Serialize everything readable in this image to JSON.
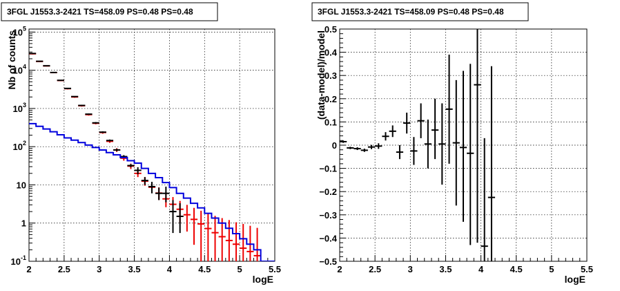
{
  "chart_data": [
    {
      "type": "scatter",
      "title": "3FGL J1553.3-2421 TS=458.09 PS=0.48 PS=0.48",
      "xlabel": "logE",
      "ylabel": "Nb of counts",
      "yscale": "log",
      "xlim": [
        2,
        5.5
      ],
      "ylim": [
        0.1,
        120000
      ],
      "grid": true,
      "x_ticks": [
        {
          "value": 2,
          "label": "2"
        },
        {
          "value": 2.5,
          "label": "2.5"
        },
        {
          "value": 3,
          "label": "3"
        },
        {
          "value": 3.5,
          "label": "3.5"
        },
        {
          "value": 4,
          "label": "4"
        },
        {
          "value": 4.5,
          "label": "4.5"
        },
        {
          "value": 5,
          "label": "5"
        },
        {
          "value": 5.5,
          "label": "5.5"
        }
      ],
      "y_ticks": [
        {
          "value": 0.1,
          "base": "10",
          "exp": "-1"
        },
        {
          "value": 1,
          "base": "1",
          "exp": ""
        },
        {
          "value": 10,
          "base": "10",
          "exp": ""
        },
        {
          "value": 100,
          "base": "10",
          "exp": "2"
        },
        {
          "value": 1000,
          "base": "10",
          "exp": "3"
        },
        {
          "value": 10000,
          "base": "10",
          "exp": "4"
        },
        {
          "value": 100000,
          "base": "10",
          "exp": "5"
        }
      ],
      "bin_edges": [
        2.0,
        2.1,
        2.2,
        2.3,
        2.4,
        2.5,
        2.6,
        2.7,
        2.8,
        2.9,
        3.0,
        3.1,
        3.2,
        3.3,
        3.4,
        3.5,
        3.6,
        3.7,
        3.8,
        3.9,
        4.0,
        4.1,
        4.2,
        4.3,
        4.4,
        4.5,
        4.6,
        4.7,
        4.8,
        4.9,
        5.0,
        5.1,
        5.2,
        5.3,
        5.4,
        5.5
      ],
      "series": [
        {
          "color": "#ee0000",
          "style": "errorbar",
          "points": [
            {
              "x": 2.05,
              "y": 27000,
              "ylo": 26000,
              "yhi": 28000
            },
            {
              "x": 2.15,
              "y": 17000,
              "ylo": 16500,
              "yhi": 17500
            },
            {
              "x": 2.25,
              "y": 13000,
              "ylo": 12600,
              "yhi": 13400
            },
            {
              "x": 2.35,
              "y": 8700,
              "ylo": 8400,
              "yhi": 9000
            },
            {
              "x": 2.45,
              "y": 5400,
              "ylo": 5200,
              "yhi": 5600
            },
            {
              "x": 2.55,
              "y": 3300,
              "ylo": 3150,
              "yhi": 3450
            },
            {
              "x": 2.65,
              "y": 2000,
              "ylo": 1900,
              "yhi": 2100
            },
            {
              "x": 2.75,
              "y": 1180,
              "ylo": 1120,
              "yhi": 1240
            },
            {
              "x": 2.85,
              "y": 690,
              "ylo": 650,
              "yhi": 730
            },
            {
              "x": 2.95,
              "y": 410,
              "ylo": 385,
              "yhi": 435
            },
            {
              "x": 3.05,
              "y": 235,
              "ylo": 218,
              "yhi": 252
            },
            {
              "x": 3.15,
              "y": 138,
              "ylo": 126,
              "yhi": 150
            },
            {
              "x": 3.25,
              "y": 82,
              "ylo": 73,
              "yhi": 91
            },
            {
              "x": 3.35,
              "y": 50,
              "ylo": 43,
              "yhi": 57
            },
            {
              "x": 3.45,
              "y": 31,
              "ylo": 26,
              "yhi": 36
            },
            {
              "x": 3.55,
              "y": 20,
              "ylo": 16,
              "yhi": 24
            },
            {
              "x": 3.65,
              "y": 12.5,
              "ylo": 9.5,
              "yhi": 16
            },
            {
              "x": 3.75,
              "y": 8.7,
              "ylo": 6.2,
              "yhi": 11.5
            },
            {
              "x": 3.85,
              "y": 6.1,
              "ylo": 4.0,
              "yhi": 8.6
            },
            {
              "x": 3.95,
              "y": 4.3,
              "ylo": 2.6,
              "yhi": 6.4
            },
            {
              "x": 4.05,
              "y": 3.1,
              "ylo": 1.6,
              "yhi": 4.8
            },
            {
              "x": 4.15,
              "y": 2.3,
              "ylo": 1.0,
              "yhi": 3.8
            },
            {
              "x": 4.25,
              "y": 1.65,
              "ylo": 0.6,
              "yhi": 3.0
            },
            {
              "x": 4.35,
              "y": 1.25,
              "ylo": 0.27,
              "yhi": 2.5
            },
            {
              "x": 4.45,
              "y": 0.95,
              "ylo": 0.1,
              "yhi": 2.1
            },
            {
              "x": 4.55,
              "y": 0.72,
              "ylo": 0.1,
              "yhi": 1.8
            },
            {
              "x": 4.65,
              "y": 0.56,
              "ylo": 0.1,
              "yhi": 1.55
            },
            {
              "x": 4.75,
              "y": 0.44,
              "ylo": 0.1,
              "yhi": 1.35
            },
            {
              "x": 4.85,
              "y": 0.35,
              "ylo": 0.1,
              "yhi": 1.2
            },
            {
              "x": 4.95,
              "y": 0.28,
              "ylo": 0.1,
              "yhi": 1.05
            },
            {
              "x": 5.05,
              "y": 0.22,
              "ylo": 0.1,
              "yhi": 0.95
            },
            {
              "x": 5.15,
              "y": 0.18,
              "ylo": 0.1,
              "yhi": 0.85
            },
            {
              "x": 5.25,
              "y": 0.14,
              "ylo": 0.1,
              "yhi": 0.75
            }
          ]
        },
        {
          "color": "#000000",
          "style": "errorbar",
          "points": [
            {
              "x": 2.05,
              "y": 27500,
              "ylo": 27300,
              "yhi": 27700
            },
            {
              "x": 2.15,
              "y": 17200,
              "ylo": 17000,
              "yhi": 17400
            },
            {
              "x": 2.25,
              "y": 13100,
              "ylo": 12900,
              "yhi": 13300
            },
            {
              "x": 2.35,
              "y": 8750,
              "ylo": 8600,
              "yhi": 8900
            },
            {
              "x": 2.45,
              "y": 5450,
              "ylo": 5350,
              "yhi": 5550
            },
            {
              "x": 2.55,
              "y": 3350,
              "ylo": 3280,
              "yhi": 3420
            },
            {
              "x": 2.65,
              "y": 2050,
              "ylo": 2000,
              "yhi": 2100
            },
            {
              "x": 2.75,
              "y": 1200,
              "ylo": 1160,
              "yhi": 1240
            },
            {
              "x": 2.85,
              "y": 710,
              "ylo": 685,
              "yhi": 735
            },
            {
              "x": 2.95,
              "y": 420,
              "ylo": 400,
              "yhi": 440
            },
            {
              "x": 3.05,
              "y": 240,
              "ylo": 228,
              "yhi": 252
            },
            {
              "x": 3.15,
              "y": 145,
              "ylo": 136,
              "yhi": 154
            },
            {
              "x": 3.25,
              "y": 82,
              "ylo": 76,
              "yhi": 88
            },
            {
              "x": 3.35,
              "y": 55,
              "ylo": 50,
              "yhi": 60
            },
            {
              "x": 3.45,
              "y": 32,
              "ylo": 29,
              "yhi": 35
            },
            {
              "x": 3.55,
              "y": 24,
              "ylo": 19,
              "yhi": 29
            },
            {
              "x": 3.65,
              "y": 13,
              "ylo": 10,
              "yhi": 16
            },
            {
              "x": 3.75,
              "y": 9,
              "ylo": 6,
              "yhi": 12
            },
            {
              "x": 3.85,
              "y": 6,
              "ylo": 4,
              "yhi": 8.5
            },
            {
              "x": 3.95,
              "y": 6,
              "ylo": 3.5,
              "yhi": 9
            },
            {
              "x": 4.05,
              "y": 2,
              "ylo": 0.55,
              "yhi": 4
            },
            {
              "x": 4.15,
              "y": 1.5,
              "ylo": 0.55,
              "yhi": 3.3
            }
          ]
        },
        {
          "color": "#0000dd",
          "style": "step",
          "values": [
            400,
            340,
            290,
            245,
            205,
            170,
            148,
            128,
            110,
            95,
            82,
            70,
            61,
            52,
            43,
            37,
            27,
            20,
            15.5,
            11.5,
            8.5,
            6,
            4.5,
            3.3,
            2.5,
            1.8,
            1.35,
            1.0,
            0.73,
            0.53,
            0.39,
            0.28,
            0.2,
            0.1,
            0.1
          ]
        }
      ]
    },
    {
      "type": "scatter",
      "title": "3FGL J1553.3-2421 TS=458.09 PS=0.48 PS=0.48",
      "xlabel": "logE",
      "ylabel": "(data-model)/model",
      "xlim": [
        2,
        5.5
      ],
      "ylim": [
        -0.5,
        0.5
      ],
      "grid": true,
      "x_ticks": [
        {
          "value": 2,
          "label": "2"
        },
        {
          "value": 2.5,
          "label": "2.5"
        },
        {
          "value": 3,
          "label": "3"
        },
        {
          "value": 3.5,
          "label": "3.5"
        },
        {
          "value": 4,
          "label": "4"
        },
        {
          "value": 4.5,
          "label": "4.5"
        },
        {
          "value": 5,
          "label": "5"
        },
        {
          "value": 5.5,
          "label": "5.5"
        }
      ],
      "y_ticks": [
        {
          "value": -0.5,
          "label": "−0.5"
        },
        {
          "value": -0.4,
          "label": "−0.4"
        },
        {
          "value": -0.3,
          "label": "−0.3"
        },
        {
          "value": -0.2,
          "label": "−0.2"
        },
        {
          "value": -0.1,
          "label": "−0.1"
        },
        {
          "value": 0,
          "label": "0"
        },
        {
          "value": 0.1,
          "label": "0.1"
        },
        {
          "value": 0.2,
          "label": "0.2"
        },
        {
          "value": 0.3,
          "label": "0.3"
        },
        {
          "value": 0.4,
          "label": "0.4"
        },
        {
          "value": 0.5,
          "label": "0.5"
        }
      ],
      "series": [
        {
          "color": "#000000",
          "style": "errorbar",
          "points": [
            {
              "x": 2.05,
              "y": 0.015,
              "ylo": 0.01,
              "yhi": 0.02
            },
            {
              "x": 2.15,
              "y": -0.012,
              "ylo": -0.017,
              "yhi": -0.007
            },
            {
              "x": 2.25,
              "y": -0.015,
              "ylo": -0.021,
              "yhi": -0.009
            },
            {
              "x": 2.35,
              "y": -0.022,
              "ylo": -0.029,
              "yhi": -0.015
            },
            {
              "x": 2.45,
              "y": -0.008,
              "ylo": -0.017,
              "yhi": 0.001
            },
            {
              "x": 2.55,
              "y": -0.004,
              "ylo": -0.016,
              "yhi": 0.008
            },
            {
              "x": 2.65,
              "y": 0.038,
              "ylo": 0.02,
              "yhi": 0.056
            },
            {
              "x": 2.75,
              "y": 0.06,
              "ylo": 0.035,
              "yhi": 0.085
            },
            {
              "x": 2.85,
              "y": -0.03,
              "ylo": -0.06,
              "yhi": 0.0
            },
            {
              "x": 2.95,
              "y": 0.095,
              "ylo": 0.05,
              "yhi": 0.14
            },
            {
              "x": 3.05,
              "y": -0.025,
              "ylo": -0.085,
              "yhi": 0.035
            },
            {
              "x": 3.15,
              "y": 0.105,
              "ylo": 0.03,
              "yhi": 0.18
            },
            {
              "x": 3.25,
              "y": 0.005,
              "ylo": -0.1,
              "yhi": 0.11
            },
            {
              "x": 3.35,
              "y": 0.065,
              "ylo": -0.06,
              "yhi": 0.2
            },
            {
              "x": 3.45,
              "y": 0.005,
              "ylo": -0.17,
              "yhi": 0.18
            },
            {
              "x": 3.55,
              "y": 0.155,
              "ylo": -0.08,
              "yhi": 0.39
            },
            {
              "x": 3.65,
              "y": 0.01,
              "ylo": -0.26,
              "yhi": 0.28
            },
            {
              "x": 3.75,
              "y": -0.01,
              "ylo": -0.33,
              "yhi": 0.32
            },
            {
              "x": 3.85,
              "y": -0.035,
              "ylo": -0.43,
              "yhi": 0.35
            },
            {
              "x": 3.95,
              "y": 0.26,
              "ylo": -0.42,
              "yhi": 0.5
            },
            {
              "x": 4.05,
              "y": -0.435,
              "ylo": -0.5,
              "yhi": 0.03
            },
            {
              "x": 4.15,
              "y": -0.225,
              "ylo": -0.5,
              "yhi": 0.34
            }
          ]
        }
      ]
    }
  ]
}
